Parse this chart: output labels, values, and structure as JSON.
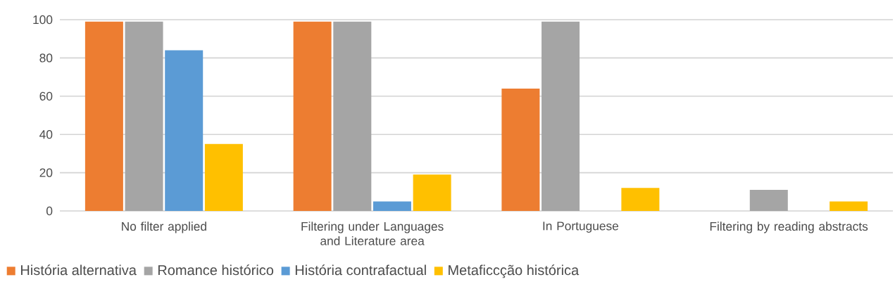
{
  "chart_data": {
    "type": "bar",
    "categories": [
      "No filter applied",
      "Filtering under Languages and Literature area",
      "In Portuguese",
      "Filtering by reading abstracts"
    ],
    "series": [
      {
        "name": "História alternativa",
        "color": "#ed7d31",
        "values": [
          99,
          99,
          64,
          0
        ]
      },
      {
        "name": "Romance histórico",
        "color": "#a5a5a5",
        "values": [
          99,
          99,
          99,
          11
        ]
      },
      {
        "name": "História contrafactual",
        "color": "#5b9bd5",
        "values": [
          84,
          5,
          0,
          0
        ]
      },
      {
        "name": "Metaficcção histórica",
        "color": "#ffc000",
        "values": [
          35,
          19,
          12,
          5
        ]
      }
    ],
    "ylim": [
      0,
      100
    ],
    "yticks": [
      0,
      20,
      40,
      60,
      80,
      100
    ],
    "grid": "y",
    "legend": "bottom"
  }
}
